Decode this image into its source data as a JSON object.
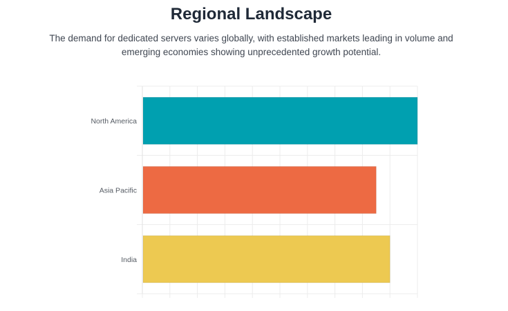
{
  "header": {
    "title": "Regional Landscape",
    "subtitle": "The demand for dedicated servers varies globally, with established markets leading in volume and emerging economies showing unprecedented growth potential."
  },
  "chart_data": {
    "type": "bar",
    "orientation": "horizontal",
    "title": "",
    "xlabel": "",
    "ylabel": "",
    "categories": [
      "North America",
      "Asia Pacific",
      "India"
    ],
    "values": [
      100,
      85,
      90
    ],
    "colors": [
      "#00A0B0",
      "#ED6A43",
      "#EDC951"
    ],
    "xlim": [
      0,
      100
    ],
    "x_tick_count": 10,
    "grid": true,
    "legend": "none"
  }
}
